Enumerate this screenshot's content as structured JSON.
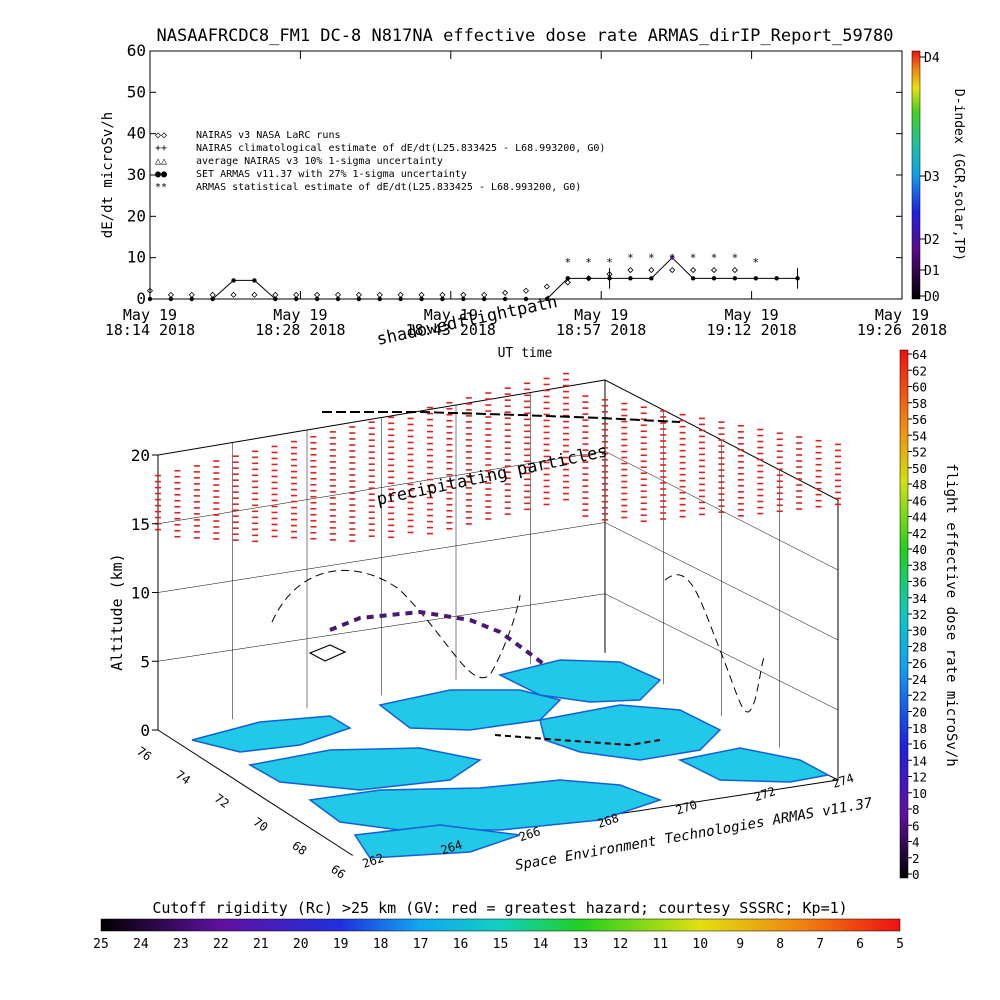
{
  "title": "NASAAFRCDC8_FM1 DC-8   N817NA effective dose rate ARMAS_dirIP_Report_59780",
  "top_chart": {
    "ylabel": "dE/dt microSv/h",
    "xlabel": "UT time",
    "y_ticks": [
      "0",
      "10",
      "20",
      "30",
      "40",
      "50",
      "60"
    ],
    "x_ticks": [
      {
        "line1": "May 19",
        "line2": "18:14 2018"
      },
      {
        "line1": "May 19",
        "line2": "18:28 2018"
      },
      {
        "line1": "May 19",
        "line2": "18:43 2018"
      },
      {
        "line1": "May 19",
        "line2": "18:57 2018"
      },
      {
        "line1": "May 19",
        "line2": "19:12 2018"
      },
      {
        "line1": "May 19",
        "line2": "19:26 2018"
      }
    ],
    "legend": [
      {
        "sym": "◇◇",
        "text": "NAIRAS v3 NASA LaRC runs"
      },
      {
        "sym": "++",
        "text": "NAIRAS climatological estimate of dE/dt(L25.833425 - L68.993200, G0)"
      },
      {
        "sym": "△△",
        "text": "average NAIRAS v3 10% 1-sigma uncertainty"
      },
      {
        "sym": "●●",
        "text": "SET ARMAS v11.37 with 27% 1-sigma uncertainty"
      },
      {
        "sym": "**",
        "text": "ARMAS statistical estimate of dE/dt(L25.833425 - L68.993200, G0)"
      }
    ],
    "d_index_label": "D-index (GCR,solar,TP)",
    "d_index_ticks": [
      "D0",
      "D1",
      "D2",
      "D3",
      "D4"
    ]
  },
  "chart_data": {
    "type": "line",
    "x_unit": "minutes after 18:14 UT",
    "xlim": [
      0,
      72
    ],
    "ylim": [
      0,
      60
    ],
    "series": [
      {
        "name": "SET ARMAS v11.37 with 27% 1-sigma uncertainty",
        "x": [
          0,
          2,
          4,
          6,
          8,
          10,
          12,
          14,
          16,
          18,
          20,
          22,
          24,
          26,
          28,
          30,
          32,
          34,
          36,
          38,
          40,
          42,
          44,
          46,
          48,
          50,
          52,
          54,
          56,
          58,
          60,
          62
        ],
        "y": [
          0,
          0,
          0,
          0,
          4.5,
          4.5,
          0,
          0,
          0,
          0,
          0,
          0,
          0,
          0,
          0,
          0,
          0,
          0,
          0,
          0,
          5,
          5,
          5,
          5,
          5,
          10,
          5,
          5,
          5,
          5,
          5,
          5
        ]
      },
      {
        "name": "ARMAS statistical estimate of dE/dt(L25.833425 - L68.993200, G0)",
        "x": [
          40,
          42,
          44,
          46,
          48,
          50,
          52,
          54,
          56,
          58
        ],
        "y": [
          9,
          9,
          9,
          10,
          10,
          10,
          10,
          10,
          10,
          9
        ]
      },
      {
        "name": "NAIRAS v3 NASA LaRC runs",
        "x": [
          0,
          2,
          4,
          6,
          8,
          10,
          12,
          14,
          16,
          18,
          20,
          22,
          24,
          26,
          28,
          30,
          32,
          34,
          36,
          38,
          40,
          42,
          44,
          46,
          48,
          50,
          52,
          54,
          56
        ],
        "y": [
          2,
          1,
          1,
          1,
          1,
          1,
          1,
          1,
          1,
          1,
          1,
          1,
          1,
          1,
          1,
          1,
          1,
          1.5,
          2,
          3,
          4,
          5,
          6,
          7,
          7,
          7,
          7,
          7,
          7
        ]
      }
    ]
  },
  "bottom_chart": {
    "title_annot": "shadowedflightpath",
    "sub_annot": "precipitating particles",
    "z_label": "Altitude (km)",
    "z_ticks": [
      "0",
      "5",
      "10",
      "15",
      "20"
    ],
    "lat_ticks": [
      "76",
      "74",
      "72",
      "70",
      "68",
      "66"
    ],
    "lon_ticks": [
      "262",
      "264",
      "266",
      "268",
      "270",
      "272",
      "274"
    ],
    "credit": "Space Environment Technologies ARMAS v11.37",
    "colorbar_label": "flight effective dose rate microSv/h",
    "colorbar_ticks": [
      "0",
      "2",
      "4",
      "6",
      "8",
      "10",
      "12",
      "14",
      "16",
      "18",
      "20",
      "22",
      "24",
      "26",
      "28",
      "30",
      "32",
      "34",
      "36",
      "38",
      "40",
      "42",
      "44",
      "46",
      "48",
      "50",
      "52",
      "54",
      "56",
      "58",
      "60",
      "62",
      "64"
    ]
  },
  "cutoff_bar": {
    "label": "Cutoff rigidity (Rc) >25 km (GV: red = greatest hazard; courtesy SSSRC; Kp=1)",
    "ticks": [
      "25",
      "24",
      "23",
      "22",
      "21",
      "20",
      "19",
      "18",
      "17",
      "16",
      "15",
      "14",
      "13",
      "12",
      "11",
      "10",
      "9",
      "8",
      "7",
      "6",
      "5"
    ]
  },
  "colors": {
    "red_marker": "#e02020",
    "map_cyan": "#22c8e8",
    "map_blue": "#1060d8",
    "purple": "#4a1870"
  }
}
